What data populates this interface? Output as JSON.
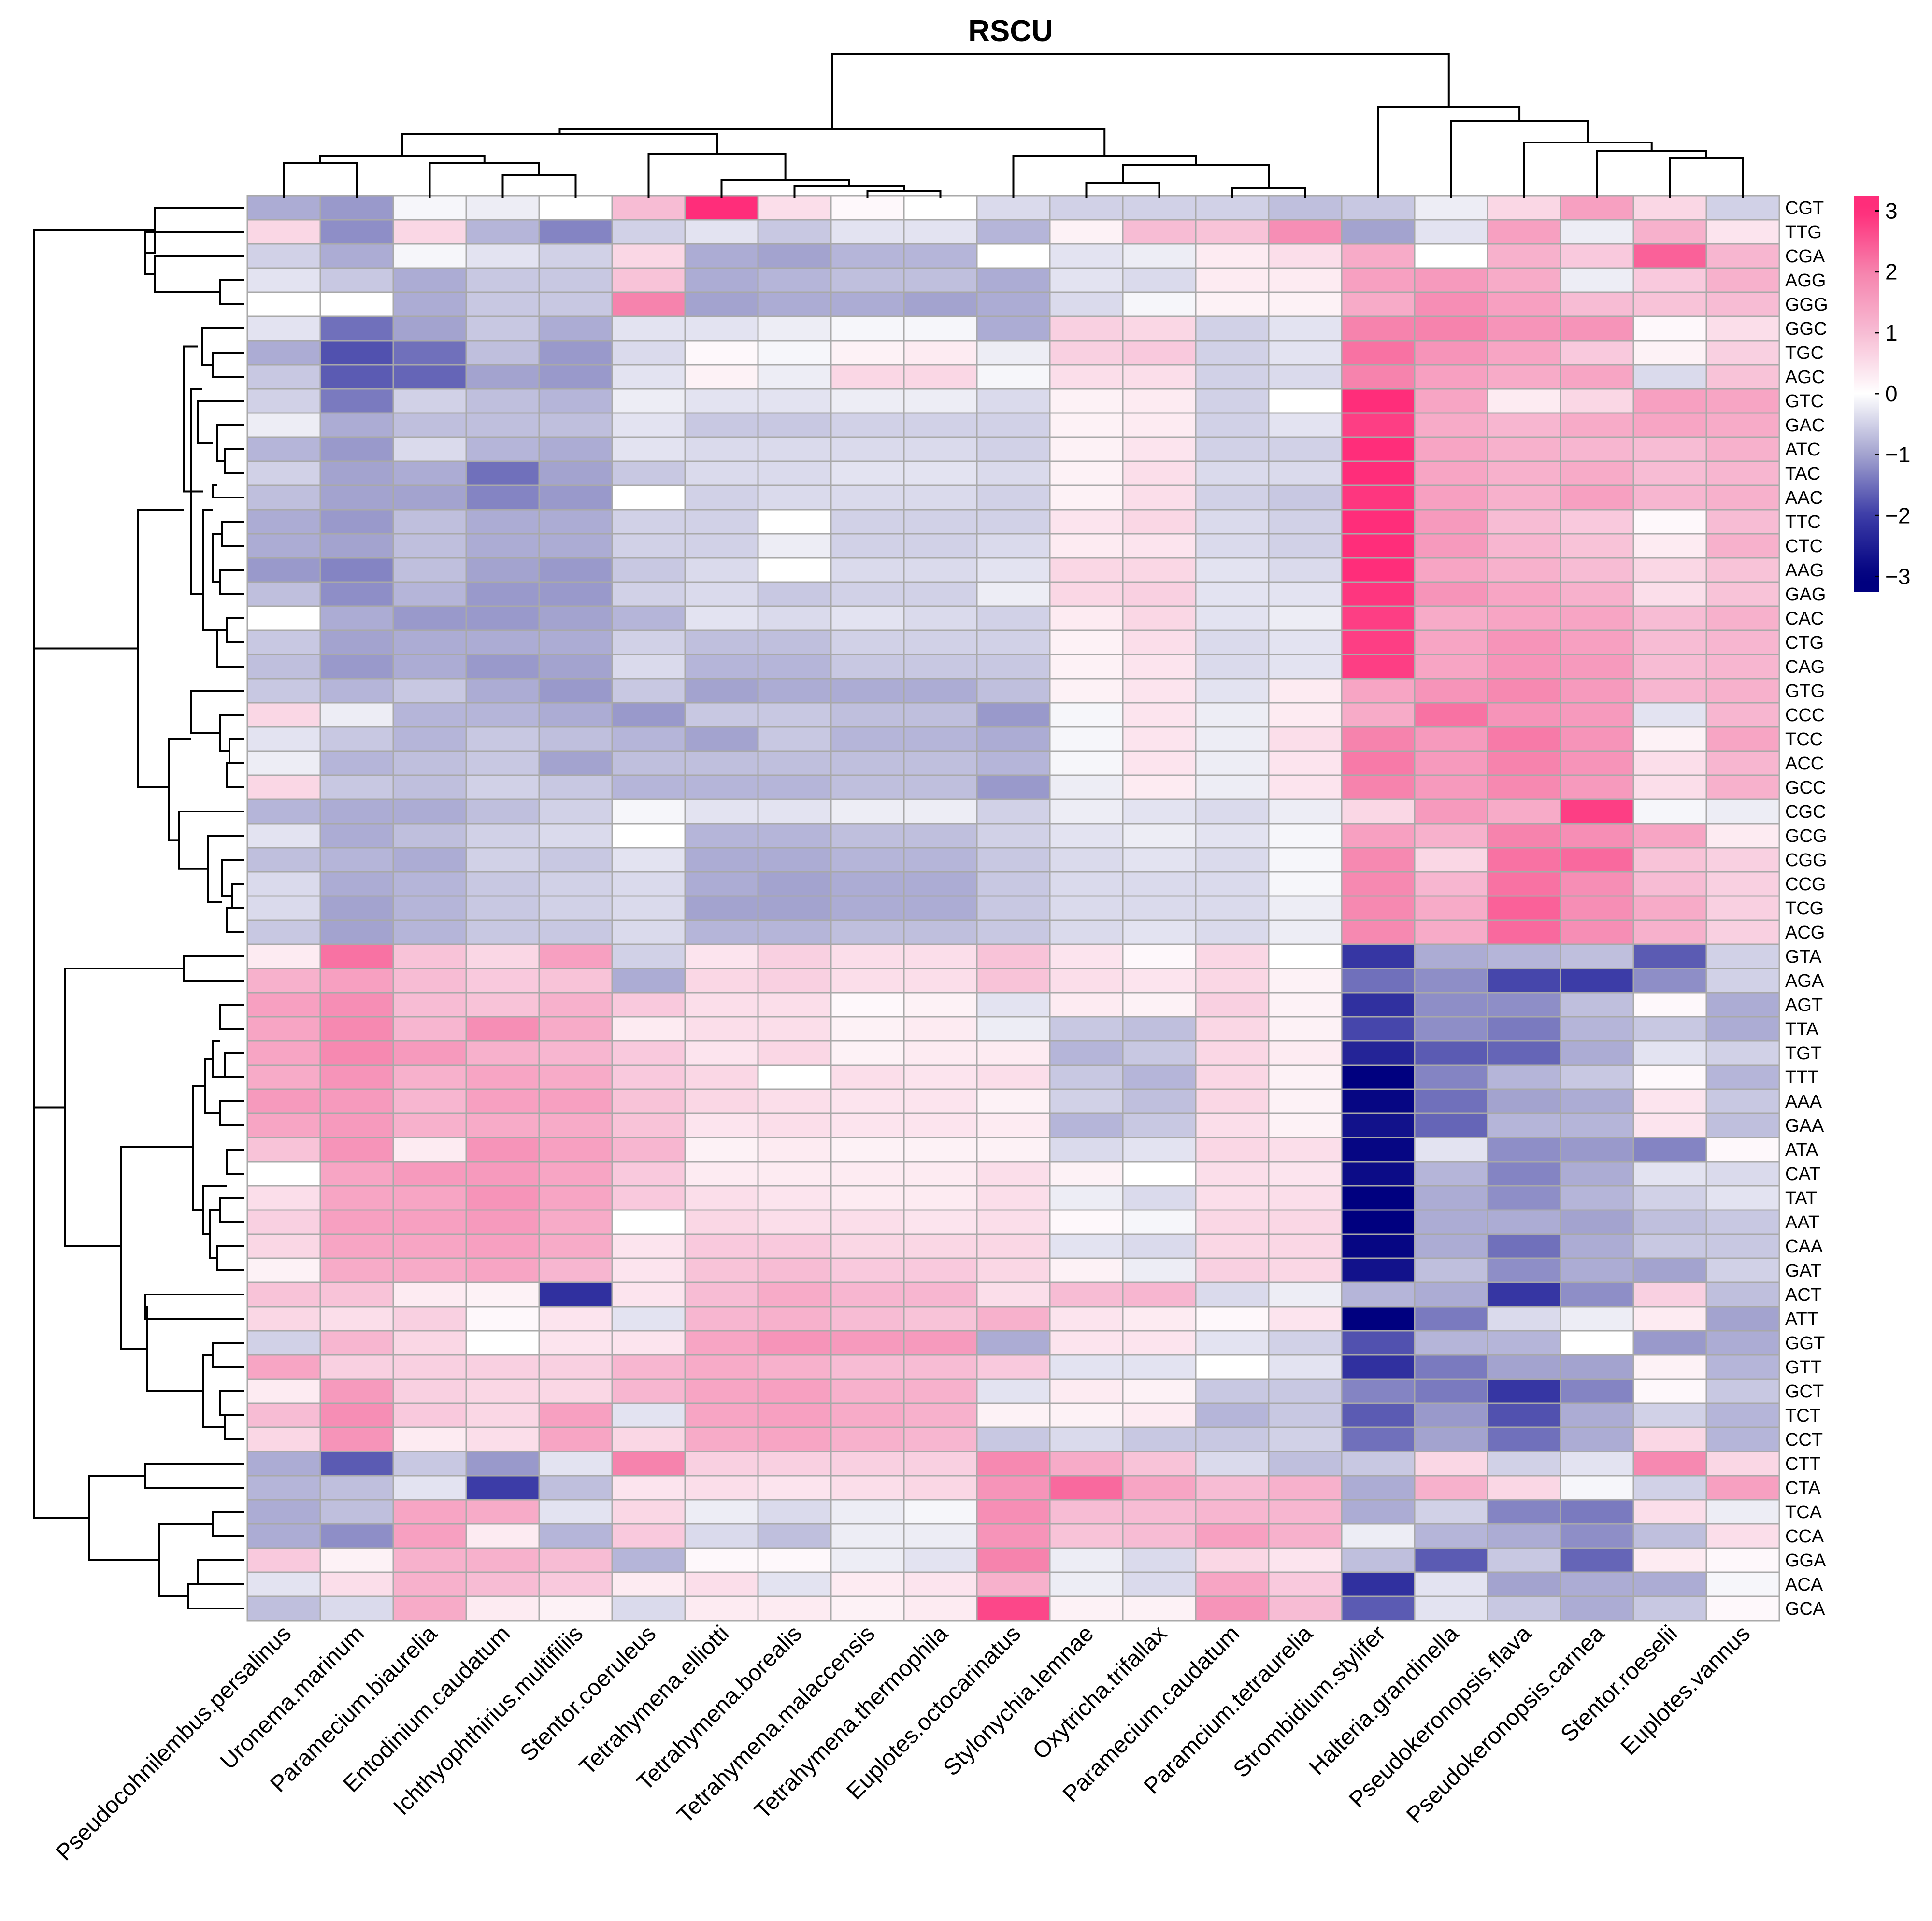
{
  "chart_data": {
    "type": "heatmap",
    "title": "RSCU",
    "colorscale": {
      "stops": [
        [
          -3,
          "#00007f"
        ],
        [
          -2,
          "#3c3ca7"
        ],
        [
          -1,
          "#a3a3cf"
        ],
        [
          0,
          "#ffffff"
        ],
        [
          1,
          "#f7bcd4"
        ],
        [
          2,
          "#f683ad"
        ],
        [
          3,
          "#ff2d7a"
        ]
      ],
      "ticks": [
        "3",
        "2",
        "1",
        "0",
        "−1",
        "−2",
        "−3"
      ],
      "tick_values": [
        3,
        2,
        1,
        0,
        -1,
        -2,
        -3
      ],
      "min": -3.25,
      "max": 3.25
    },
    "columns": [
      "Pseudocohnilembus.persalinus",
      "Uronema.marinum",
      "Paramecium.biaurelia",
      "Entodinium.caudatum",
      "Ichthyophthirius.multifiliis",
      "Stentor.coeruleus",
      "Tetrahymena.elliotti",
      "Tetrahymena.borealis",
      "Tetrahymena.malaccensis",
      "Tetrahymena.thermophila",
      "Euplotes.octocarinatus",
      "Stylonychia.lemnae",
      "Oxytricha.trifallax",
      "Paramecium.caudatum",
      "Paramcium.tetraurelia",
      "Strombidium.stylifer",
      "Halteria.grandinella",
      "Pseudokeronopsis.flava",
      "Pseudokeronopsis.carnea",
      "Stentor.roeselii",
      "Euplotes.vannus"
    ],
    "rows": [
      "CGT",
      "TTG",
      "CGA",
      "AGG",
      "GGG",
      "GGC",
      "TGC",
      "AGC",
      "GTC",
      "GAC",
      "ATC",
      "TAC",
      "AAC",
      "TTC",
      "CTC",
      "AAG",
      "GAG",
      "CAC",
      "CTG",
      "CAG",
      "GTG",
      "CCC",
      "TCC",
      "ACC",
      "GCC",
      "CGC",
      "GCG",
      "CGG",
      "CCG",
      "TCG",
      "ACG",
      "GTA",
      "AGA",
      "AGT",
      "TTA",
      "TGT",
      "TTT",
      "AAA",
      "GAA",
      "ATA",
      "CAT",
      "TAT",
      "AAT",
      "CAA",
      "GAT",
      "ACT",
      "ATT",
      "GGT",
      "GTT",
      "GCT",
      "TCT",
      "CCT",
      "CTT",
      "CTA",
      "TCA",
      "CCA",
      "GGA",
      "ACA",
      "GCA"
    ],
    "values": [
      [
        -0.9,
        -1.1,
        -0.1,
        -0.2,
        0.0,
        1.0,
        3.0,
        0.5,
        0.1,
        0.0,
        -0.4,
        -0.5,
        -0.5,
        -0.5,
        -0.7,
        -0.6,
        -0.2,
        0.6,
        1.5,
        0.6,
        -0.5
      ],
      [
        0.6,
        -1.2,
        0.6,
        -0.8,
        -1.3,
        -0.5,
        -0.3,
        -0.6,
        -0.3,
        -0.3,
        -0.8,
        0.2,
        1.0,
        0.9,
        1.8,
        -1.0,
        -0.3,
        1.5,
        -0.2,
        1.2,
        0.4
      ],
      [
        -0.5,
        -0.9,
        -0.1,
        -0.3,
        -0.5,
        0.6,
        -0.9,
        -1.0,
        -0.8,
        -0.8,
        0.0,
        -0.3,
        -0.2,
        0.3,
        0.5,
        1.3,
        0.0,
        1.2,
        0.8,
        2.4,
        1.1
      ],
      [
        -0.3,
        -0.6,
        -0.9,
        -0.6,
        -0.6,
        0.9,
        -0.9,
        -0.8,
        -0.7,
        -0.7,
        -0.9,
        -0.3,
        -0.4,
        0.3,
        0.3,
        1.5,
        1.6,
        1.3,
        -0.2,
        0.8,
        1.2
      ],
      [
        0.0,
        0.0,
        -0.9,
        -0.6,
        -0.6,
        2.0,
        -1.0,
        -0.9,
        -0.9,
        -1.0,
        -0.9,
        -0.4,
        -0.1,
        0.2,
        0.2,
        1.3,
        1.8,
        1.5,
        1.0,
        0.9,
        1.0
      ],
      [
        -0.3,
        -1.5,
        -1.0,
        -0.6,
        -0.9,
        -0.3,
        -0.3,
        -0.2,
        -0.1,
        -0.1,
        -0.9,
        0.7,
        0.6,
        -0.5,
        -0.3,
        2.0,
        2.0,
        1.7,
        1.7,
        0.1,
        0.5
      ],
      [
        -0.9,
        -1.8,
        -1.5,
        -0.7,
        -1.1,
        -0.4,
        0.1,
        -0.1,
        0.2,
        0.3,
        -0.2,
        0.7,
        0.8,
        -0.5,
        -0.3,
        2.2,
        1.7,
        1.4,
        0.8,
        0.2,
        0.7
      ],
      [
        -0.6,
        -1.7,
        -1.6,
        -1.0,
        -1.1,
        -0.3,
        0.2,
        -0.2,
        0.6,
        0.6,
        -0.1,
        0.5,
        0.5,
        -0.5,
        -0.4,
        2.0,
        1.5,
        1.3,
        1.4,
        -0.4,
        0.9
      ],
      [
        -0.5,
        -1.4,
        -0.5,
        -0.7,
        -0.8,
        -0.2,
        -0.3,
        -0.3,
        -0.2,
        -0.2,
        -0.4,
        0.2,
        0.3,
        -0.5,
        0.0,
        3.3,
        1.4,
        0.3,
        0.6,
        1.5,
        1.4
      ],
      [
        -0.2,
        -0.9,
        -0.7,
        -0.7,
        -0.7,
        -0.3,
        -0.6,
        -0.6,
        -0.5,
        -0.5,
        -0.5,
        0.2,
        0.3,
        -0.5,
        -0.3,
        2.8,
        1.3,
        1.1,
        1.3,
        1.4,
        1.3
      ],
      [
        -0.8,
        -1.1,
        -0.4,
        -0.8,
        -0.9,
        -0.3,
        -0.4,
        -0.4,
        -0.4,
        -0.4,
        -0.5,
        0.2,
        0.4,
        -0.5,
        -0.5,
        3.2,
        1.4,
        1.2,
        1.1,
        1.0,
        1.2
      ],
      [
        -0.5,
        -1.0,
        -0.9,
        -1.5,
        -1.0,
        -0.6,
        -0.4,
        -0.4,
        -0.3,
        -0.3,
        -0.4,
        0.2,
        0.5,
        -0.4,
        -0.4,
        3.0,
        1.4,
        1.2,
        1.3,
        1.0,
        1.1
      ],
      [
        -0.7,
        -1.0,
        -1.0,
        -1.3,
        -1.1,
        0.0,
        -0.5,
        -0.4,
        -0.4,
        -0.4,
        -0.5,
        0.2,
        0.5,
        -0.5,
        -0.6,
        2.9,
        1.5,
        1.2,
        1.5,
        1.1,
        1.2
      ],
      [
        -0.9,
        -1.1,
        -0.7,
        -0.9,
        -0.9,
        -0.5,
        -0.5,
        0.0,
        -0.5,
        -0.5,
        -0.5,
        0.4,
        0.6,
        -0.4,
        -0.5,
        3.2,
        1.6,
        1.0,
        0.8,
        0.1,
        1.0
      ],
      [
        -0.9,
        -1.0,
        -0.7,
        -0.9,
        -0.9,
        -0.5,
        -0.5,
        -0.2,
        -0.5,
        -0.5,
        -0.4,
        0.3,
        0.4,
        -0.4,
        -0.5,
        3.2,
        1.6,
        1.1,
        0.9,
        0.3,
        1.2
      ],
      [
        -1.1,
        -1.3,
        -0.7,
        -1.0,
        -1.1,
        -0.6,
        -0.4,
        0.0,
        -0.4,
        -0.4,
        -0.3,
        0.6,
        0.6,
        -0.3,
        -0.4,
        3.0,
        1.4,
        1.2,
        1.0,
        0.6,
        0.9
      ],
      [
        -0.7,
        -1.2,
        -0.8,
        -1.1,
        -1.1,
        -0.5,
        -0.4,
        -0.6,
        -0.5,
        -0.5,
        -0.2,
        0.6,
        0.7,
        -0.3,
        -0.3,
        2.9,
        1.7,
        1.4,
        1.2,
        0.5,
        0.9
      ],
      [
        0.0,
        -0.9,
        -1.1,
        -1.1,
        -1.0,
        -0.8,
        -0.3,
        -0.4,
        -0.3,
        -0.4,
        -0.5,
        0.3,
        0.6,
        -0.3,
        -0.2,
        2.8,
        1.3,
        1.4,
        1.4,
        1.0,
        1.2
      ],
      [
        -0.6,
        -1.0,
        -0.9,
        -0.9,
        -0.9,
        -0.5,
        -0.7,
        -0.7,
        -0.5,
        -0.5,
        -0.5,
        0.2,
        0.5,
        -0.4,
        -0.3,
        2.8,
        1.4,
        1.7,
        1.5,
        1.0,
        1.1
      ],
      [
        -0.7,
        -1.1,
        -0.9,
        -1.1,
        -1.0,
        -0.4,
        -0.8,
        -0.8,
        -0.6,
        -0.6,
        -0.6,
        0.2,
        0.4,
        -0.4,
        -0.3,
        2.8,
        1.4,
        1.7,
        1.6,
        1.0,
        1.1
      ],
      [
        -0.6,
        -0.8,
        -0.6,
        -0.9,
        -1.1,
        -0.6,
        -1.0,
        -0.9,
        -0.9,
        -0.9,
        -0.7,
        0.2,
        0.4,
        -0.3,
        0.3,
        1.4,
        1.7,
        1.9,
        1.6,
        1.1,
        1.2
      ],
      [
        0.6,
        -0.2,
        -0.8,
        -0.8,
        -0.9,
        -1.1,
        -0.6,
        -0.6,
        -0.7,
        -0.7,
        -1.1,
        -0.1,
        0.4,
        -0.2,
        0.3,
        1.3,
        2.2,
        1.7,
        1.6,
        -0.3,
        1.1
      ],
      [
        -0.3,
        -0.6,
        -0.8,
        -0.6,
        -0.7,
        -0.8,
        -1.0,
        -0.6,
        -0.8,
        -0.8,
        -0.9,
        -0.1,
        0.4,
        -0.2,
        0.5,
        2.0,
        1.6,
        2.1,
        1.7,
        0.2,
        1.4
      ],
      [
        -0.2,
        -0.8,
        -0.7,
        -0.6,
        -1.0,
        -0.7,
        -0.7,
        -0.7,
        -0.7,
        -0.7,
        -0.8,
        -0.1,
        0.4,
        -0.2,
        0.4,
        2.1,
        1.6,
        2.0,
        1.7,
        0.5,
        1.1
      ],
      [
        0.6,
        -0.6,
        -0.7,
        -0.5,
        -0.6,
        -0.8,
        -0.8,
        -0.8,
        -0.7,
        -0.7,
        -1.1,
        -0.2,
        0.3,
        -0.2,
        0.4,
        2.0,
        1.6,
        1.9,
        1.6,
        0.5,
        1.2
      ],
      [
        -0.8,
        -0.9,
        -0.9,
        -0.7,
        -0.5,
        -0.1,
        -0.3,
        -0.3,
        -0.2,
        -0.2,
        -0.5,
        -0.2,
        -0.3,
        -0.4,
        -0.2,
        0.6,
        1.6,
        1.3,
        2.8,
        -0.1,
        -0.2
      ],
      [
        -0.3,
        -0.9,
        -0.7,
        -0.5,
        -0.4,
        0.0,
        -0.8,
        -0.8,
        -0.7,
        -0.7,
        -0.5,
        -0.3,
        -0.2,
        -0.3,
        -0.1,
        1.5,
        1.2,
        2.0,
        1.8,
        1.4,
        0.3
      ],
      [
        -0.7,
        -0.8,
        -0.9,
        -0.5,
        -0.6,
        -0.3,
        -0.9,
        -0.9,
        -0.8,
        -0.8,
        -0.6,
        -0.4,
        -0.3,
        -0.4,
        -0.1,
        1.9,
        0.6,
        2.2,
        2.3,
        0.9,
        0.7
      ],
      [
        -0.4,
        -0.9,
        -0.8,
        -0.6,
        -0.5,
        -0.4,
        -0.9,
        -1.0,
        -0.9,
        -0.9,
        -0.6,
        -0.4,
        -0.4,
        -0.4,
        -0.1,
        1.9,
        1.1,
        2.2,
        1.8,
        1.0,
        0.7
      ],
      [
        -0.4,
        -1.0,
        -0.8,
        -0.6,
        -0.5,
        -0.4,
        -1.0,
        -1.0,
        -0.9,
        -0.9,
        -0.6,
        -0.4,
        -0.4,
        -0.4,
        -0.2,
        1.9,
        1.3,
        2.4,
        1.8,
        1.3,
        0.7
      ],
      [
        -0.6,
        -1.0,
        -0.8,
        -0.6,
        -0.6,
        -0.4,
        -0.8,
        -0.8,
        -0.7,
        -0.7,
        -0.6,
        -0.4,
        -0.3,
        -0.4,
        -0.2,
        1.9,
        1.3,
        2.3,
        1.8,
        1.2,
        0.7
      ],
      [
        0.3,
        2.2,
        0.9,
        0.6,
        1.5,
        -0.5,
        0.4,
        0.7,
        0.5,
        0.5,
        0.9,
        0.4,
        0.1,
        0.6,
        0.0,
        -2.1,
        -0.9,
        -0.8,
        -0.7,
        -1.7,
        -0.5
      ],
      [
        1.2,
        1.5,
        1.0,
        0.8,
        0.9,
        -0.9,
        0.6,
        0.7,
        0.5,
        0.5,
        0.9,
        0.5,
        0.4,
        0.6,
        0.2,
        -1.5,
        -1.2,
        -1.9,
        -2.0,
        -1.2,
        -0.5
      ],
      [
        1.5,
        1.8,
        1.0,
        0.9,
        1.2,
        0.8,
        0.5,
        0.5,
        0.1,
        0.2,
        -0.3,
        0.3,
        0.2,
        0.7,
        0.2,
        -2.2,
        -1.2,
        -1.2,
        -0.7,
        0.1,
        -0.9
      ],
      [
        1.4,
        1.9,
        1.1,
        1.8,
        1.3,
        0.3,
        0.5,
        0.5,
        0.2,
        0.3,
        -0.2,
        -0.6,
        -0.7,
        0.6,
        0.2,
        -1.9,
        -1.2,
        -1.4,
        -0.8,
        -0.6,
        -0.9
      ],
      [
        1.4,
        1.9,
        1.6,
        1.2,
        1.1,
        0.8,
        0.4,
        0.6,
        0.2,
        0.3,
        0.3,
        -0.8,
        -0.6,
        0.6,
        0.3,
        -2.4,
        -1.7,
        -1.6,
        -0.9,
        -0.3,
        -0.5
      ],
      [
        1.3,
        1.7,
        1.2,
        1.4,
        1.3,
        0.8,
        0.6,
        0.0,
        0.5,
        0.4,
        0.5,
        -0.6,
        -0.8,
        0.6,
        0.2,
        -3.2,
        -1.3,
        -0.8,
        -0.6,
        0.1,
        -0.8
      ],
      [
        1.6,
        1.6,
        1.1,
        1.5,
        1.5,
        0.9,
        0.6,
        0.5,
        0.4,
        0.4,
        0.2,
        -0.5,
        -0.7,
        0.6,
        0.2,
        -2.9,
        -1.5,
        -1.0,
        -0.9,
        0.4,
        -0.6
      ],
      [
        1.4,
        1.6,
        1.2,
        1.3,
        1.3,
        0.9,
        0.4,
        0.5,
        0.4,
        0.4,
        0.3,
        -0.8,
        -0.6,
        0.5,
        0.2,
        -2.7,
        -1.6,
        -0.8,
        -0.8,
        0.4,
        -0.7
      ],
      [
        0.9,
        1.7,
        0.3,
        1.7,
        1.5,
        1.1,
        0.2,
        0.3,
        0.2,
        0.2,
        0.2,
        -0.4,
        -0.3,
        0.6,
        0.5,
        -2.9,
        -0.3,
        -1.2,
        -1.1,
        -1.3,
        0.1
      ],
      [
        0.0,
        1.4,
        1.6,
        1.6,
        1.4,
        0.8,
        0.3,
        0.3,
        0.3,
        0.3,
        0.5,
        0.2,
        0.0,
        0.5,
        0.4,
        -2.8,
        -0.8,
        -1.3,
        -0.9,
        -0.3,
        -0.4
      ],
      [
        0.5,
        1.4,
        1.4,
        1.7,
        1.4,
        0.8,
        0.5,
        0.4,
        0.3,
        0.3,
        0.5,
        -0.2,
        -0.4,
        0.5,
        0.5,
        -3.0,
        -0.9,
        -1.2,
        -0.8,
        -0.5,
        -0.3
      ],
      [
        0.7,
        1.5,
        1.5,
        1.6,
        1.3,
        0.0,
        0.6,
        0.5,
        0.5,
        0.4,
        0.5,
        0.1,
        -0.1,
        0.6,
        0.6,
        -3.0,
        -0.9,
        -0.9,
        -1.0,
        -0.7,
        -0.6
      ],
      [
        0.6,
        1.4,
        1.4,
        1.5,
        1.3,
        0.4,
        0.8,
        0.8,
        0.6,
        0.6,
        0.6,
        -0.3,
        -0.4,
        0.6,
        0.6,
        -2.9,
        -0.9,
        -1.5,
        -0.9,
        -0.6,
        -0.6
      ],
      [
        0.2,
        1.3,
        1.3,
        1.4,
        1.1,
        0.4,
        0.9,
        1.0,
        0.8,
        0.8,
        0.6,
        0.2,
        -0.2,
        0.7,
        0.6,
        -2.7,
        -0.7,
        -1.2,
        -0.9,
        -1.0,
        -0.5
      ],
      [
        0.9,
        0.9,
        0.3,
        0.2,
        -2.2,
        0.4,
        1.0,
        1.3,
        1.1,
        1.1,
        0.5,
        1.0,
        1.1,
        -0.4,
        -0.2,
        -0.8,
        -0.9,
        -2.1,
        -1.2,
        0.7,
        -0.7
      ],
      [
        0.6,
        0.5,
        0.7,
        0.1,
        0.4,
        -0.3,
        1.1,
        1.2,
        1.0,
        0.9,
        1.2,
        0.4,
        0.3,
        0.1,
        0.4,
        -3.3,
        -1.4,
        -0.4,
        -0.2,
        0.3,
        -1.0
      ],
      [
        -0.5,
        1.1,
        0.6,
        0.0,
        0.4,
        0.4,
        1.4,
        1.7,
        1.6,
        1.6,
        -0.9,
        0.4,
        0.4,
        -0.3,
        -0.5,
        -1.8,
        -0.8,
        -0.8,
        0.0,
        -1.1,
        -0.9
      ],
      [
        1.4,
        0.7,
        0.7,
        0.7,
        0.7,
        1.1,
        1.3,
        1.2,
        1.0,
        1.0,
        0.8,
        -0.3,
        -0.3,
        0.0,
        -0.3,
        -2.2,
        -1.4,
        -1.0,
        -1.0,
        0.2,
        -0.8
      ],
      [
        0.3,
        1.6,
        0.7,
        0.6,
        0.6,
        1.1,
        1.4,
        1.5,
        1.2,
        1.2,
        -0.3,
        0.3,
        0.2,
        -0.6,
        -0.6,
        -1.3,
        -1.4,
        -2.1,
        -1.3,
        0.1,
        -0.6
      ],
      [
        1.0,
        1.8,
        0.8,
        0.6,
        1.5,
        -0.3,
        1.4,
        1.5,
        1.3,
        1.2,
        0.2,
        0.2,
        0.3,
        -0.8,
        -0.6,
        -1.7,
        -1.1,
        -1.8,
        -0.9,
        -0.5,
        -0.8
      ],
      [
        0.6,
        1.7,
        0.3,
        0.5,
        1.4,
        0.6,
        1.3,
        1.4,
        1.2,
        1.1,
        -0.6,
        -0.4,
        -0.6,
        -0.6,
        -0.5,
        -1.5,
        -1.0,
        -1.5,
        -0.9,
        0.6,
        -0.8
      ],
      [
        -0.9,
        -1.7,
        -0.6,
        -1.1,
        -0.3,
        2.0,
        0.7,
        0.7,
        0.7,
        0.7,
        1.9,
        1.3,
        0.9,
        -0.4,
        -0.7,
        -0.6,
        0.6,
        -0.5,
        -0.3,
        1.9,
        0.6
      ],
      [
        -0.8,
        -0.7,
        -0.3,
        -2.0,
        -0.7,
        0.4,
        0.5,
        0.4,
        0.5,
        0.6,
        1.7,
        2.3,
        1.4,
        1.0,
        1.2,
        -0.9,
        1.2,
        0.6,
        -0.1,
        -0.5,
        1.5
      ],
      [
        -0.9,
        -0.7,
        1.4,
        1.3,
        -0.3,
        0.6,
        -0.2,
        -0.4,
        -0.2,
        -0.1,
        1.8,
        1.0,
        1.0,
        1.1,
        1.1,
        -0.9,
        -0.5,
        -1.3,
        -1.4,
        0.5,
        -0.2
      ],
      [
        -0.9,
        -1.2,
        1.5,
        0.3,
        -0.8,
        0.8,
        -0.4,
        -0.7,
        -0.2,
        -0.2,
        1.7,
        0.9,
        1.0,
        1.5,
        1.2,
        -0.2,
        -0.8,
        -0.9,
        -1.2,
        -0.7,
        0.5
      ],
      [
        0.8,
        0.2,
        1.2,
        1.2,
        1.0,
        -0.8,
        0.1,
        0.1,
        -0.2,
        -0.3,
        2.0,
        -0.2,
        -0.4,
        0.6,
        0.4,
        -0.7,
        -1.7,
        -0.6,
        -1.6,
        0.3,
        0.1
      ],
      [
        -0.3,
        0.5,
        1.2,
        1.0,
        0.8,
        0.3,
        0.5,
        -0.3,
        0.3,
        0.4,
        1.2,
        -0.2,
        -0.4,
        1.4,
        0.8,
        -2.2,
        -0.3,
        -1.0,
        -0.9,
        -0.9,
        -0.1
      ],
      [
        -0.7,
        -0.4,
        1.3,
        0.3,
        0.2,
        -0.4,
        0.3,
        0.3,
        0.2,
        0.3,
        2.7,
        0.2,
        0.2,
        1.7,
        1.0,
        -1.7,
        -0.3,
        -0.6,
        -0.9,
        -0.6,
        0.1
      ]
    ]
  }
}
